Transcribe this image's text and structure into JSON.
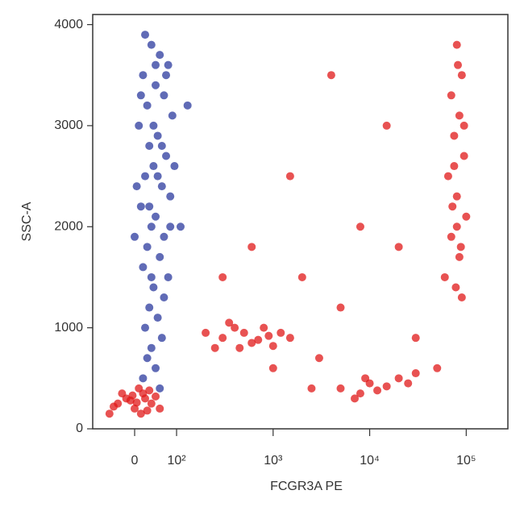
{
  "chart_data": {
    "type": "scatter",
    "x_label": "FCGR3A PE",
    "y_label": "SSC-A",
    "xscale": "logicle",
    "xlim": [
      -100,
      270000
    ],
    "ylim": [
      0,
      4100
    ],
    "xticks": [
      0,
      {
        "value": 100,
        "label": "10²"
      },
      {
        "value": 1000,
        "label": "10³"
      },
      {
        "value": 10000,
        "label": "10⁴"
      },
      {
        "value": 100000,
        "label": "10⁵"
      }
    ],
    "yticks": [
      0,
      1000,
      2000,
      3000,
      4000
    ],
    "series": [
      {
        "color": "#2b3a9e",
        "x": [
          40,
          60,
          20,
          80,
          50,
          30,
          70,
          90,
          10,
          55,
          35,
          75,
          45,
          25,
          65,
          85,
          15,
          50,
          40,
          70,
          30,
          60,
          20,
          80,
          45,
          35,
          55,
          25,
          65,
          40,
          30,
          50,
          20,
          60,
          45,
          55,
          35,
          65,
          75,
          25,
          95,
          5,
          110,
          130,
          0,
          70,
          15,
          85,
          50,
          40
        ],
        "y": [
          3800,
          3700,
          3500,
          3600,
          3400,
          3200,
          3300,
          3100,
          3000,
          2900,
          2800,
          2700,
          2600,
          2500,
          2400,
          2300,
          2200,
          2100,
          2000,
          1900,
          1800,
          1700,
          1600,
          1500,
          1400,
          1200,
          1100,
          1000,
          900,
          800,
          700,
          600,
          500,
          400,
          3000,
          2500,
          2200,
          2800,
          3500,
          3900,
          2600,
          2400,
          2000,
          3200,
          1900,
          1300,
          3300,
          2000,
          3600,
          1500
        ]
      },
      {
        "color": "#e01818",
        "x": [
          -40,
          -20,
          0,
          20,
          40,
          -60,
          10,
          30,
          -10,
          50,
          -30,
          60,
          5,
          25,
          -50,
          15,
          35,
          -5,
          300,
          500,
          700,
          400,
          600,
          900,
          250,
          1200,
          350,
          800,
          450,
          1500,
          200,
          1000,
          2000,
          3000,
          5000,
          1500,
          8000,
          20000,
          30000,
          600,
          4000,
          15000,
          2500,
          300,
          50000,
          1000,
          5000,
          8000,
          10000,
          12000,
          15000,
          20000,
          7000,
          25000,
          30000,
          9000,
          80000,
          90000,
          70000,
          85000,
          75000,
          95000,
          65000,
          80000,
          100000,
          70000,
          85000,
          60000,
          90000,
          80000,
          75000,
          95000,
          88000,
          72000,
          82000,
          78000
        ],
        "y": [
          250,
          300,
          200,
          350,
          250,
          150,
          400,
          180,
          280,
          320,
          350,
          200,
          260,
          300,
          220,
          150,
          380,
          330,
          900,
          950,
          880,
          1000,
          850,
          920,
          800,
          950,
          1050,
          1000,
          800,
          900,
          950,
          820,
          1500,
          700,
          1200,
          2500,
          2000,
          1800,
          900,
          1800,
          3500,
          3000,
          400,
          1500,
          600,
          600,
          400,
          350,
          450,
          380,
          420,
          500,
          300,
          450,
          550,
          500,
          3800,
          3500,
          3300,
          3100,
          2900,
          2700,
          2500,
          2300,
          2100,
          1900,
          1700,
          1500,
          1300,
          2000,
          2600,
          3000,
          1800,
          2200,
          3600,
          1400
        ]
      }
    ]
  }
}
